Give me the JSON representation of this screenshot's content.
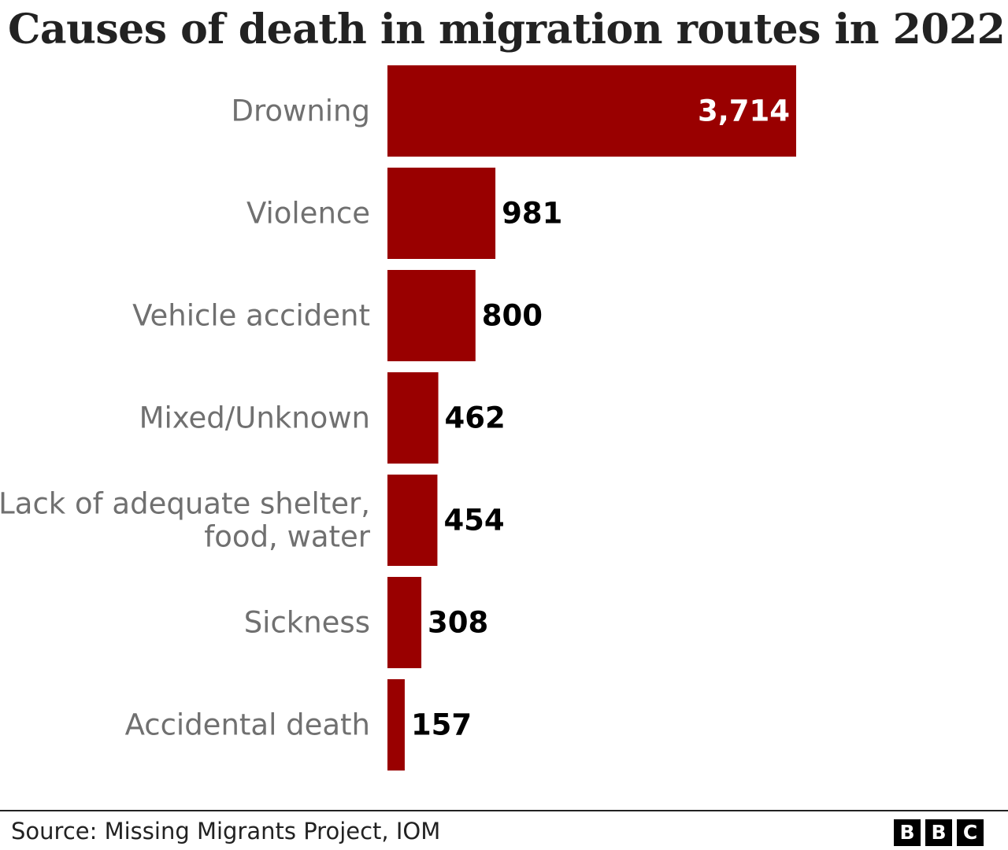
{
  "chart_data": {
    "type": "bar",
    "orientation": "horizontal",
    "title": "Causes of death in migration routes in 2022",
    "categories": [
      "Drowning",
      "Violence",
      "Vehicle accident",
      "Mixed/Unknown",
      "Lack of adequate shelter, food, water",
      "Sickness",
      "Accidental death"
    ],
    "category_lines": [
      [
        "Drowning"
      ],
      [
        "Violence"
      ],
      [
        "Vehicle accident"
      ],
      [
        "Mixed/Unknown"
      ],
      [
        "Lack of adequate shelter,",
        "food, water"
      ],
      [
        "Sickness"
      ],
      [
        "Accidental death"
      ]
    ],
    "values": [
      3714,
      981,
      800,
      462,
      454,
      308,
      157
    ],
    "value_labels": [
      "3,714",
      "981",
      "800",
      "462",
      "454",
      "308",
      "157"
    ],
    "bar_color": "#990000",
    "value_label_inside_color": "#ffffff",
    "value_label_outside_color": "#000000",
    "xlim": [
      0,
      3714
    ],
    "grid": false,
    "legend": "none"
  },
  "footer": {
    "source": "Source: Missing Migrants Project, IOM",
    "logo_letters": [
      "B",
      "B",
      "C"
    ]
  }
}
